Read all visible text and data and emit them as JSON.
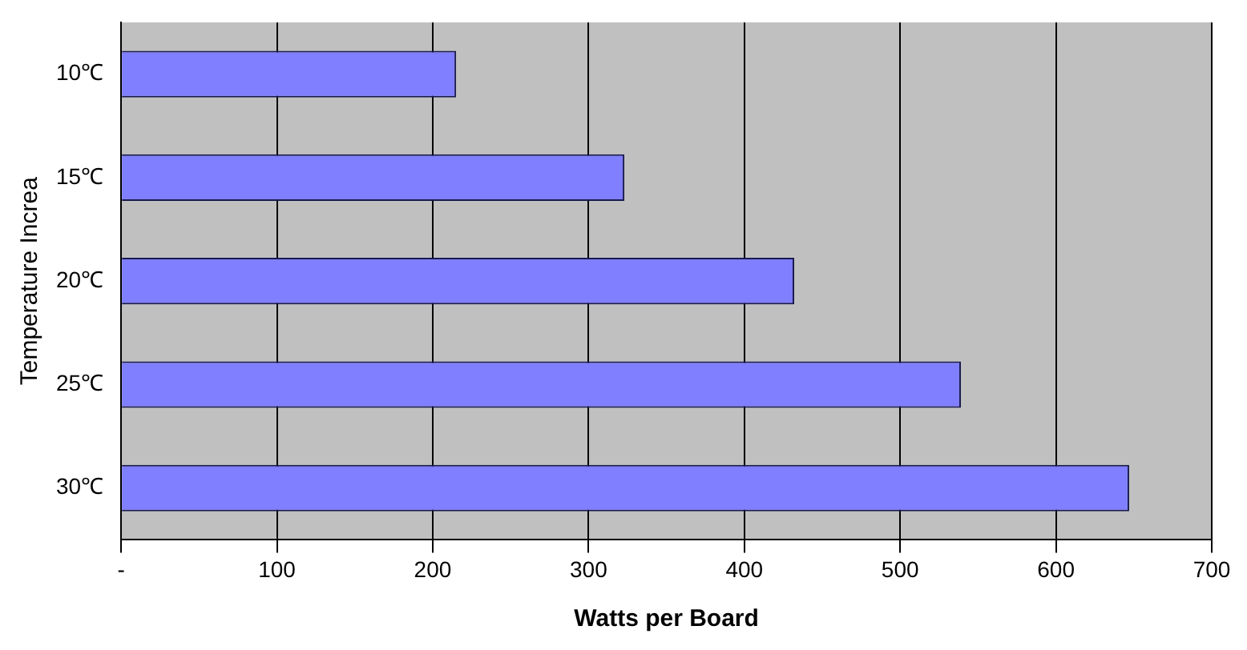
{
  "chart_data": {
    "type": "bar",
    "orientation": "horizontal",
    "xlabel": "Watts per Board",
    "ylabel": "Temperature Increa",
    "categories": [
      "10℃",
      "15℃",
      "20℃",
      "25℃",
      "30℃"
    ],
    "values": [
      215,
      323,
      432,
      539,
      647
    ],
    "color": "#7f7fff",
    "xlim": [
      0,
      700
    ],
    "xticks": [
      {
        "value": 0,
        "label": "-"
      },
      100,
      200,
      300,
      400,
      500,
      600,
      700
    ],
    "grid": "x",
    "legend": false
  }
}
